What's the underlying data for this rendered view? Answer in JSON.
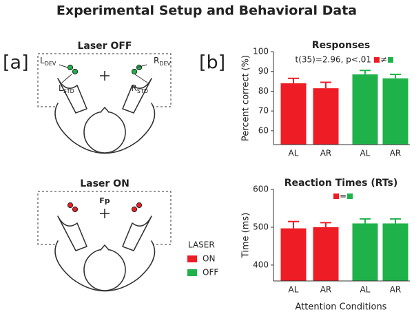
{
  "title": "Experimental Setup and Behavioral Data",
  "panel_a": {
    "label": "[a]",
    "diagrams": [
      {
        "title": "Laser OFF",
        "labels": [
          {
            "main": "L",
            "sub": "DEV"
          },
          {
            "main": "R",
            "sub": "DEV"
          },
          {
            "main": "L",
            "sub": "STD"
          },
          {
            "main": "R",
            "sub": "STD"
          }
        ]
      },
      {
        "title": "Laser ON",
        "fixation": "Fp"
      }
    ],
    "legend": {
      "title": "LASER",
      "entries": [
        {
          "name": "ON",
          "color": "#ee1c25"
        },
        {
          "name": "OFF",
          "color": "#1fb24a"
        }
      ]
    }
  },
  "panel_b": {
    "label": "[b]",
    "x_label": "Attention Conditions"
  },
  "chart_data": [
    {
      "type": "bar",
      "title": "Responses",
      "y_label": "Percent correct (%)",
      "annotation": "t(35)=2.96, p<.01",
      "relation": "≠",
      "categories": [
        "AL",
        "AR",
        "AL",
        "AR"
      ],
      "values": [
        84,
        81.5,
        88.5,
        86.5
      ],
      "errors": [
        2.5,
        3,
        2,
        2
      ],
      "colors": [
        "#ee1c25",
        "#ee1c25",
        "#1fb24a",
        "#1fb24a"
      ],
      "ylim": [
        53,
        100
      ],
      "yticks": [
        60,
        70,
        80,
        90,
        100
      ]
    },
    {
      "type": "bar",
      "title": "Reaction Times (RTs)",
      "y_label": "Time (ms)",
      "relation": "=",
      "categories": [
        "AL",
        "AR",
        "AL",
        "AR"
      ],
      "values": [
        497,
        500,
        510,
        510
      ],
      "errors": [
        18,
        12,
        12,
        12
      ],
      "colors": [
        "#ee1c25",
        "#ee1c25",
        "#1fb24a",
        "#1fb24a"
      ],
      "ylim": [
        358,
        600
      ],
      "yticks": [
        400,
        500,
        600
      ]
    }
  ]
}
